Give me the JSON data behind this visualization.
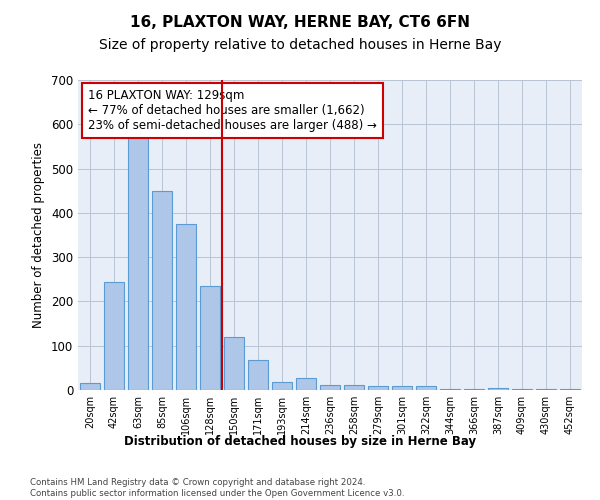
{
  "title": "16, PLAXTON WAY, HERNE BAY, CT6 6FN",
  "subtitle": "Size of property relative to detached houses in Herne Bay",
  "xlabel": "Distribution of detached houses by size in Herne Bay",
  "ylabel": "Number of detached properties",
  "categories": [
    "20sqm",
    "42sqm",
    "63sqm",
    "85sqm",
    "106sqm",
    "128sqm",
    "150sqm",
    "171sqm",
    "193sqm",
    "214sqm",
    "236sqm",
    "258sqm",
    "279sqm",
    "301sqm",
    "322sqm",
    "344sqm",
    "366sqm",
    "387sqm",
    "409sqm",
    "430sqm",
    "452sqm"
  ],
  "values": [
    15,
    245,
    590,
    450,
    375,
    235,
    120,
    68,
    18,
    28,
    12,
    12,
    10,
    8,
    10,
    3,
    3,
    5,
    3,
    3,
    3
  ],
  "bar_color": "#aec6e8",
  "bar_edge_color": "#5a9bd4",
  "vline_color": "#cc0000",
  "annotation_text": "16 PLAXTON WAY: 129sqm\n← 77% of detached houses are smaller (1,662)\n23% of semi-detached houses are larger (488) →",
  "annotation_box_edge_color": "#cc0000",
  "ylim_max": 700,
  "bg_color": "#e8eef7",
  "footer_line1": "Contains HM Land Registry data © Crown copyright and database right 2024.",
  "footer_line2": "Contains public sector information licensed under the Open Government Licence v3.0.",
  "title_fontsize": 11,
  "subtitle_fontsize": 10,
  "annotation_fontsize": 8.5,
  "vline_bin_index": 5
}
